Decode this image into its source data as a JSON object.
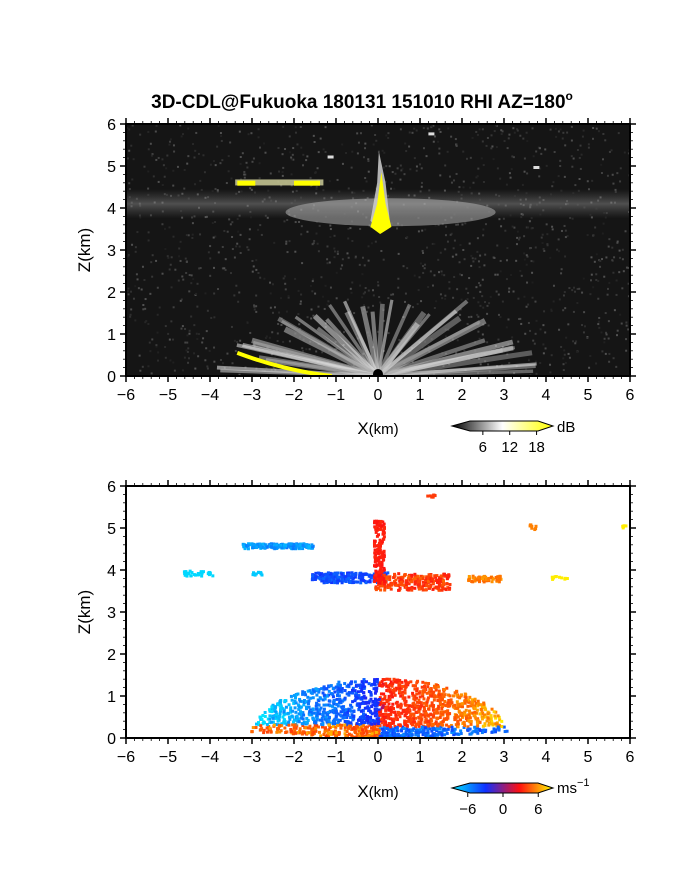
{
  "figure": {
    "title_main": "3D-CDL@Fukuoka 180131 151010 RHI AZ=180",
    "title_sup": "o"
  },
  "chart_data": [
    {
      "type": "heatmap",
      "quantity": "backscatter intensity",
      "xlabel_main": "X",
      "xlabel_unit": "(km)",
      "ylabel": "Z(km)",
      "xlim": [
        -6,
        6
      ],
      "ylim": [
        0,
        6
      ],
      "xticks": [
        "−6",
        "−5",
        "−4",
        "−3",
        "−2",
        "−1",
        "0",
        "1",
        "2",
        "3",
        "4",
        "5",
        "6"
      ],
      "yticks": [
        "0",
        "1",
        "2",
        "3",
        "4",
        "5",
        "6"
      ],
      "grid": false,
      "colorbar": {
        "unit": "dB",
        "ticks": [
          "6",
          "12",
          "18"
        ],
        "range": [
          0,
          21
        ],
        "colors": [
          "#000000",
          "#ffffff",
          "#ffff00"
        ]
      },
      "features": [
        {
          "name": "near-ground fan",
          "x_range": [
            -3.2,
            3.2
          ],
          "z_range": [
            0,
            1.5
          ]
        },
        {
          "name": "cloud layer",
          "x_range": [
            -6,
            6
          ],
          "z_range": [
            3.8,
            4.4
          ]
        },
        {
          "name": "column",
          "x_range": [
            -0.1,
            0.3
          ],
          "z_range": [
            3.4,
            5.4
          ]
        }
      ]
    },
    {
      "type": "heatmap",
      "quantity": "Doppler velocity",
      "xlabel_main": "X",
      "xlabel_unit": "(km)",
      "ylabel": "Z(km)",
      "xlim": [
        -6,
        6
      ],
      "ylim": [
        0,
        6
      ],
      "xticks": [
        "−6",
        "−5",
        "−4",
        "−3",
        "−2",
        "−1",
        "0",
        "1",
        "2",
        "3",
        "4",
        "5",
        "6"
      ],
      "yticks": [
        "0",
        "1",
        "2",
        "3",
        "4",
        "5",
        "6"
      ],
      "grid": false,
      "colorbar": {
        "unit_main": "ms",
        "unit_sup": "−1",
        "ticks": [
          "−6",
          "0",
          "6"
        ],
        "range": [
          -8,
          8
        ],
        "colors": [
          "#00e5ff",
          "#1030ff",
          "#ff1010",
          "#ffff00"
        ]
      },
      "features": [
        {
          "name": "near-ground fan",
          "x_range": [
            -3.6,
            3.2
          ],
          "z_range": [
            0,
            1.5
          ]
        },
        {
          "name": "cloud layer",
          "x_range": [
            -6,
            6
          ],
          "z_range": [
            3.3,
            4.7
          ]
        }
      ]
    }
  ]
}
